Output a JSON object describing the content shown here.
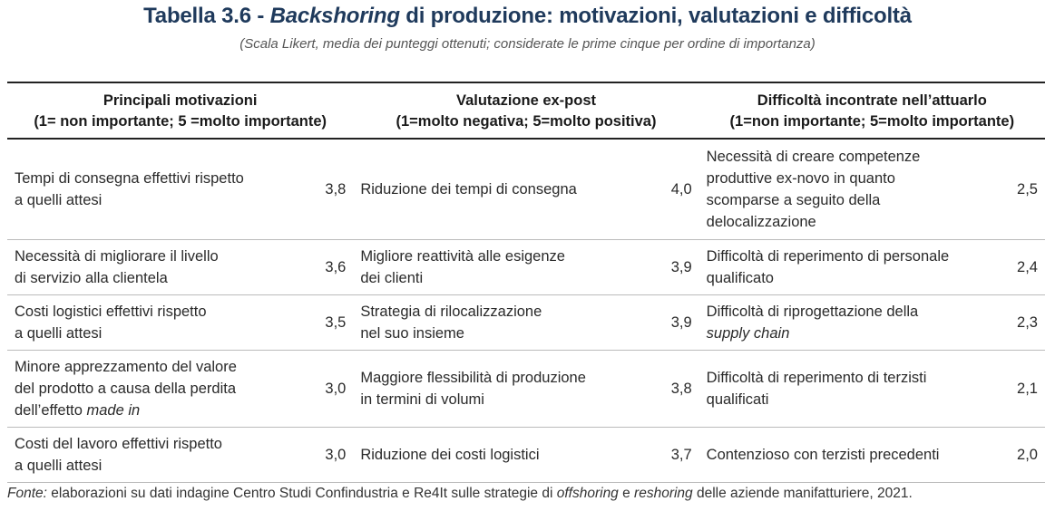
{
  "title": {
    "prefix": "Tabella 3.6 - ",
    "italic": "Backshoring",
    "suffix": " di produzione: motivazioni, valutazioni e difficoltà"
  },
  "subtitle": "(Scala Likert, media dei punteggi ottenuti; considerate le prime cinque per ordine di importanza)",
  "headers": [
    {
      "line1": "Principali motivazioni",
      "line2": "(1= non importante; 5 =molto importante)"
    },
    {
      "line1": "Valutazione ex-post",
      "line2": "(1=molto negativa; 5=molto positiva)"
    },
    {
      "line1": "Difficoltà incontrate nell’attuarlo",
      "line2": "(1=non importante; 5=molto importante)"
    }
  ],
  "rows": [
    [
      {
        "text": "Tempi di consegna effettivi rispetto\na quelli attesi",
        "value": "3,8"
      },
      {
        "text": "Riduzione dei tempi di consegna",
        "value": "4,0"
      },
      {
        "text": "Necessità di creare competenze\nproduttive ex-novo in quanto\nscomparse a seguito della\ndelocalizzazione",
        "value": "2,5"
      }
    ],
    [
      {
        "text": "Necessità di migliorare il livello\ndi servizio alla clientela",
        "value": "3,6"
      },
      {
        "text": "Migliore reattività alle esigenze\ndei clienti",
        "value": "3,9"
      },
      {
        "text": "Difficoltà di reperimento di personale\nqualificato",
        "value": "2,4"
      }
    ],
    [
      {
        "text": "Costi logistici effettivi rispetto\na quelli attesi",
        "value": "3,5"
      },
      {
        "text": "Strategia di rilocalizzazione\nnel suo insieme",
        "value": "3,9"
      },
      {
        "text": "Difficoltà di riprogettazione della\n",
        "italic": "supply chain",
        "value": "2,3"
      }
    ],
    [
      {
        "text": "Minore apprezzamento del valore\ndel prodotto a causa della perdita\ndell’effetto ",
        "italic": "made in",
        "value": "3,0"
      },
      {
        "text": "Maggiore flessibilità di produzione\n in termini di volumi",
        "value": "3,8"
      },
      {
        "text": "Difficoltà di reperimento di terzisti\nqualificati",
        "value": "2,1"
      }
    ],
    [
      {
        "text": "Costi del lavoro effettivi rispetto\na quelli attesi",
        "value": "3,0"
      },
      {
        "text": "Riduzione dei costi logistici",
        "value": "3,7"
      },
      {
        "text": "Contenzioso con terzisti precedenti",
        "value": "2,0"
      }
    ]
  ],
  "source": {
    "label": "Fonte:",
    "part1": " elaborazioni su dati indagine Centro Studi Confindustria e Re4It sulle strategie di ",
    "italic1": "offshoring",
    "part2": " e ",
    "italic2": "reshoring",
    "part3": " delle aziende manifatturiere, 2021."
  }
}
